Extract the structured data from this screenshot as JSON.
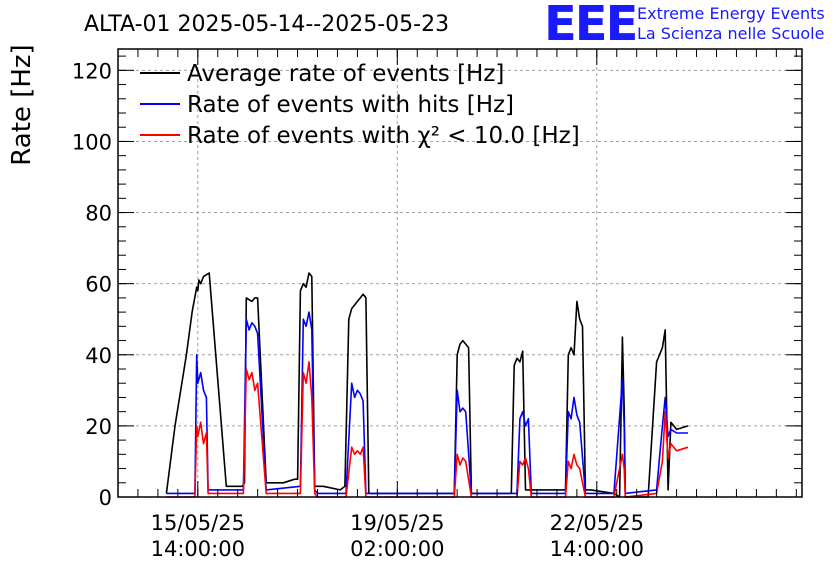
{
  "title": "ALTA-01 2025-05-14--2025-05-23",
  "logo": {
    "mark": "EEE",
    "line1": "Extreme Energy Events",
    "line2": "La Scienza nelle Scuole",
    "color": "#1a1aff"
  },
  "chart_data": {
    "type": "line",
    "title": "ALTA-01 2025-05-14--2025-05-23",
    "ylabel": "Rate [Hz]",
    "xlabel": "",
    "ylim": [
      0,
      126
    ],
    "y_ticks": [
      0,
      20,
      40,
      60,
      80,
      100,
      120
    ],
    "x_ticks": [
      {
        "x": 1.4,
        "line1": "15/05/25",
        "line2": "14:00:00"
      },
      {
        "x": 4.9,
        "line1": "19/05/25",
        "line2": "02:00:00"
      },
      {
        "x": 8.4,
        "line1": "22/05/25",
        "line2": "14:00:00"
      }
    ],
    "xlim": [
      0.0,
      12.0
    ],
    "x_unit": "days from 2025-05-14 00:00",
    "grid": true,
    "legend_position": "top-left",
    "series": [
      {
        "name": "Average rate of events [Hz]",
        "color": "#000000",
        "x": [
          0.85,
          1.0,
          1.2,
          1.3,
          1.38,
          1.4,
          1.42,
          1.45,
          1.5,
          1.6,
          1.9,
          2.1,
          2.15,
          2.18,
          2.22,
          2.25,
          2.35,
          2.4,
          2.45,
          2.6,
          2.9,
          3.1,
          3.15,
          3.2,
          3.25,
          3.3,
          3.35,
          3.4,
          3.45,
          3.6,
          3.9,
          3.98,
          4.05,
          4.1,
          4.15,
          4.2,
          4.25,
          4.3,
          4.35,
          4.4,
          4.6,
          5.0,
          5.5,
          5.9,
          5.95,
          6.0,
          6.05,
          6.1,
          6.15,
          6.2,
          6.25,
          6.3,
          6.4,
          6.7,
          6.9,
          6.95,
          7.0,
          7.05,
          7.1,
          7.15,
          7.2,
          7.3,
          7.6,
          7.85,
          7.9,
          7.95,
          8.0,
          8.05,
          8.1,
          8.15,
          8.2,
          8.3,
          8.7,
          8.8,
          8.85,
          8.88,
          8.9,
          8.95,
          9.0,
          9.3,
          9.45,
          9.5,
          9.55,
          9.6,
          9.65,
          9.7,
          9.8,
          10.0
        ],
        "y": [
          1,
          20,
          40,
          52,
          59,
          58,
          61,
          60,
          62,
          63,
          3,
          3,
          3,
          3,
          4,
          56,
          55,
          56,
          56,
          4,
          4,
          5,
          5,
          58,
          60,
          59,
          63,
          62,
          3,
          3,
          2,
          3,
          50,
          53,
          54,
          55,
          56,
          57,
          56,
          1,
          1,
          1,
          1,
          1,
          40,
          43,
          44,
          43,
          42,
          1,
          1,
          1,
          1,
          1,
          1,
          37,
          39,
          38,
          41,
          2,
          2,
          2,
          2,
          2,
          40,
          42,
          40,
          55,
          50,
          48,
          2,
          2,
          1,
          0,
          45,
          25,
          0,
          0,
          0,
          0,
          38,
          40,
          42,
          47,
          2,
          21,
          19,
          20
        ]
      },
      {
        "name": "Rate of events with hits [Hz]",
        "color": "#0000ff",
        "x": [
          0.85,
          1.35,
          1.38,
          1.4,
          1.45,
          1.5,
          1.55,
          1.58,
          2.2,
          2.25,
          2.3,
          2.35,
          2.4,
          2.45,
          2.6,
          3.2,
          3.25,
          3.3,
          3.35,
          3.4,
          3.45,
          3.5,
          4.0,
          4.1,
          4.15,
          4.2,
          4.25,
          4.3,
          4.35,
          4.4,
          5.9,
          5.95,
          6.0,
          6.05,
          6.1,
          6.2,
          6.7,
          7.0,
          7.05,
          7.1,
          7.15,
          7.2,
          7.25,
          7.85,
          7.9,
          7.95,
          8.0,
          8.05,
          8.1,
          8.2,
          8.7,
          8.85,
          8.88,
          8.9,
          9.45,
          9.55,
          9.6,
          9.65,
          9.7,
          9.8,
          10.0
        ],
        "y": [
          1,
          1,
          40,
          32,
          35,
          30,
          28,
          2,
          2,
          50,
          47,
          49,
          48,
          46,
          2,
          3,
          50,
          48,
          52,
          47,
          2,
          1,
          1,
          32,
          28,
          30,
          29,
          27,
          1,
          1,
          1,
          30,
          24,
          25,
          24,
          1,
          1,
          1,
          22,
          24,
          20,
          22,
          1,
          1,
          24,
          22,
          28,
          23,
          21,
          1,
          1,
          33,
          20,
          1,
          2,
          20,
          28,
          17,
          19,
          18,
          18
        ]
      },
      {
        "name": "Rate of events with χ² < 10.0 [Hz]",
        "color": "#ff0000",
        "x": [
          0.85,
          1.35,
          1.38,
          1.4,
          1.45,
          1.5,
          1.55,
          1.58,
          2.2,
          2.25,
          2.3,
          2.35,
          2.4,
          2.45,
          2.6,
          3.2,
          3.25,
          3.3,
          3.35,
          3.4,
          3.45,
          3.5,
          4.0,
          4.1,
          4.15,
          4.2,
          4.25,
          4.3,
          4.35,
          4.4,
          5.9,
          5.95,
          6.0,
          6.05,
          6.1,
          6.2,
          6.7,
          7.0,
          7.05,
          7.1,
          7.15,
          7.2,
          7.25,
          7.85,
          7.9,
          7.95,
          8.0,
          8.05,
          8.1,
          8.2,
          8.7,
          8.85,
          8.88,
          8.9,
          9.45,
          9.55,
          9.6,
          9.65,
          9.7,
          9.8,
          10.0
        ],
        "y": [
          0,
          0,
          20,
          17,
          21,
          15,
          18,
          1,
          1,
          36,
          33,
          35,
          30,
          32,
          1,
          1,
          35,
          32,
          38,
          28,
          1,
          0,
          0,
          14,
          12,
          13,
          12,
          14,
          0,
          0,
          0,
          12,
          9,
          11,
          10,
          0,
          0,
          0,
          10,
          9,
          11,
          8,
          0,
          0,
          10,
          8,
          12,
          9,
          8,
          0,
          0,
          12,
          8,
          0,
          1,
          10,
          24,
          11,
          15,
          13,
          14
        ]
      }
    ]
  }
}
